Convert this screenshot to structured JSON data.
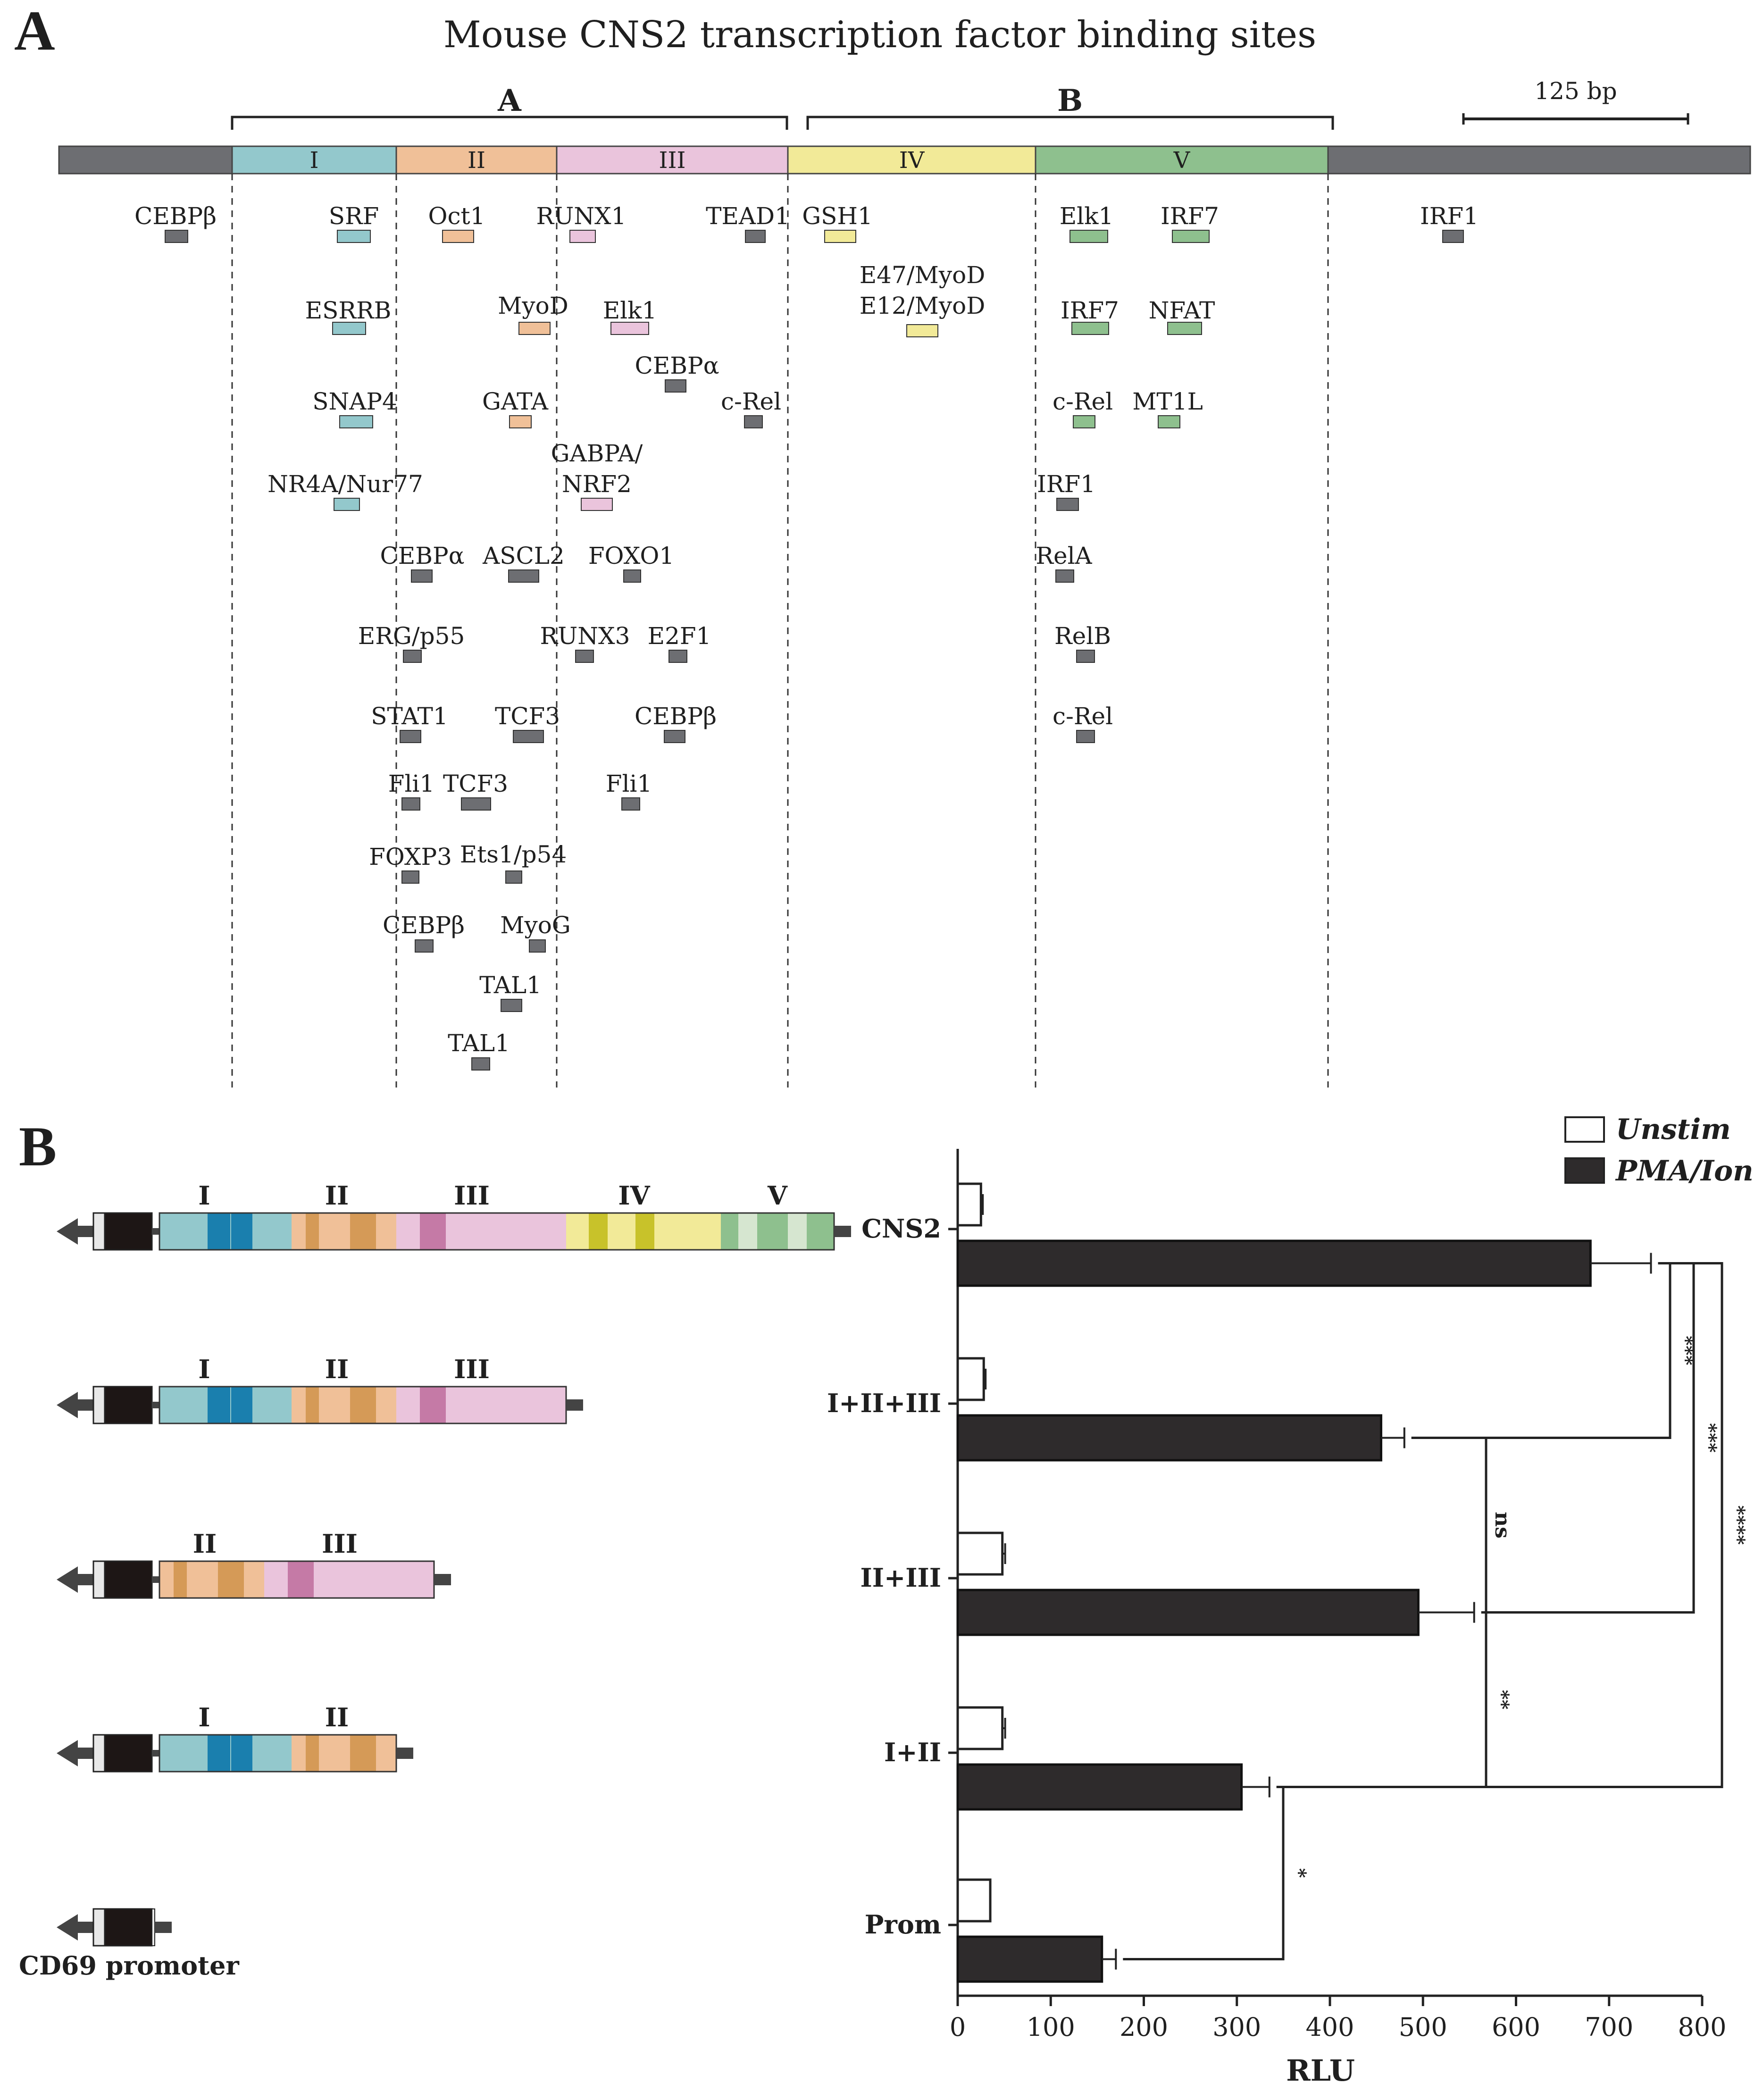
{
  "panelA": {
    "letter": "A",
    "title": "Mouse CNS2 transcription factor binding sites",
    "groupA": "A",
    "groupB": "B",
    "scaleLabel": "125 bp",
    "segments": [
      {
        "label": "I",
        "color": "#93c8cc"
      },
      {
        "label": "II",
        "color": "#f0c098"
      },
      {
        "label": "III",
        "color": "#eac4dc"
      },
      {
        "label": "IV",
        "color": "#f2ea98"
      },
      {
        "label": "V",
        "color": "#8ec08e"
      }
    ],
    "flankColor": "#6d6e72",
    "sites": [
      {
        "label": "CEBPβ",
        "color": "gray"
      },
      {
        "label": "SRF",
        "color": "teal"
      },
      {
        "label": "Oct1",
        "color": "peach"
      },
      {
        "label": "RUNX1",
        "color": "pink"
      },
      {
        "label": "TEAD1",
        "color": "gray"
      },
      {
        "label": "GSH1",
        "color": "yellow"
      },
      {
        "label": "Elk1",
        "color": "green"
      },
      {
        "label": "IRF7",
        "color": "green"
      },
      {
        "label": "IRF1",
        "color": "gray"
      },
      {
        "label": "E47/MyoD",
        "color": "none"
      },
      {
        "label": "E12/MyoD",
        "color": "yellow"
      },
      {
        "label": "ESRRB",
        "color": "teal"
      },
      {
        "label": "MyoD",
        "color": "peach"
      },
      {
        "label": "Elk1",
        "color": "pink"
      },
      {
        "label": "IRF7",
        "color": "green"
      },
      {
        "label": "NFAT",
        "color": "green"
      },
      {
        "label": "CEBPα",
        "color": "gray"
      },
      {
        "label": "SNAP4",
        "color": "teal"
      },
      {
        "label": "GATA",
        "color": "peach"
      },
      {
        "label": "c-Rel",
        "color": "gray"
      },
      {
        "label": "c-Rel",
        "color": "green"
      },
      {
        "label": "MT1L",
        "color": "green"
      },
      {
        "label": "GABPA/",
        "color": "none"
      },
      {
        "label": "NRF2",
        "color": "pink"
      },
      {
        "label": "NR4A/Nur77",
        "color": "teal"
      },
      {
        "label": "IRF1",
        "color": "gray"
      },
      {
        "label": "CEBPα",
        "color": "gray"
      },
      {
        "label": "ASCL2",
        "color": "gray"
      },
      {
        "label": "FOXO1",
        "color": "gray"
      },
      {
        "label": "RelA",
        "color": "gray"
      },
      {
        "label": "ERG/p55",
        "color": "gray"
      },
      {
        "label": "RUNX3",
        "color": "gray"
      },
      {
        "label": "E2F1",
        "color": "gray"
      },
      {
        "label": "RelB",
        "color": "gray"
      },
      {
        "label": "STAT1",
        "color": "gray"
      },
      {
        "label": "TCF3",
        "color": "gray"
      },
      {
        "label": "CEBPβ",
        "color": "gray"
      },
      {
        "label": "c-Rel",
        "color": "gray"
      },
      {
        "label": "Fli1",
        "color": "gray"
      },
      {
        "label": "TCF3",
        "color": "gray"
      },
      {
        "label": "Fli1",
        "color": "gray"
      },
      {
        "label": "FOXP3",
        "color": "gray"
      },
      {
        "label": "Ets1/p54",
        "color": "gray"
      },
      {
        "label": "CEBPβ",
        "color": "gray"
      },
      {
        "label": "MyoG",
        "color": "gray"
      },
      {
        "label": "TAL1",
        "color": "gray"
      },
      {
        "label": "TAL1",
        "color": "gray"
      }
    ]
  },
  "panelB": {
    "letter": "B",
    "promoterLabel": "CD69 promoter",
    "constructSegments": [
      "I",
      "II",
      "III",
      "IV",
      "V"
    ],
    "constructs": [
      {
        "name": "CNS2",
        "segments": [
          "I",
          "II",
          "III",
          "IV",
          "V"
        ]
      },
      {
        "name": "I+II+III",
        "segments": [
          "I",
          "II",
          "III"
        ]
      },
      {
        "name": "II+III",
        "segments": [
          "II",
          "III"
        ]
      },
      {
        "name": "I+II",
        "segments": [
          "I",
          "II"
        ]
      },
      {
        "name": "Prom",
        "segments": []
      }
    ]
  },
  "chart_data": {
    "type": "bar",
    "orientation": "horizontal",
    "categories": [
      "CNS2",
      "I+II+III",
      "II+III",
      "I+II",
      "Prom"
    ],
    "series": [
      {
        "name": "Unstim",
        "color": "#ffffff",
        "values": [
          25,
          28,
          48,
          48,
          35
        ],
        "errors": [
          2,
          2,
          3,
          3,
          0
        ]
      },
      {
        "name": "PMA/Ion",
        "color": "#2e2b2c",
        "values": [
          680,
          455,
          495,
          305,
          155
        ],
        "errors": [
          65,
          25,
          60,
          30,
          15
        ]
      }
    ],
    "xlabel": "RLU",
    "xlim": [
      0,
      800
    ],
    "xticks": [
      "0",
      "100",
      "200",
      "300",
      "400",
      "500",
      "600",
      "700",
      "800"
    ],
    "legend": "top-right",
    "significance": [
      {
        "pair": [
          "CNS2",
          "I+II+III"
        ],
        "label": "***"
      },
      {
        "pair": [
          "CNS2",
          "II+III"
        ],
        "label": "***"
      },
      {
        "pair": [
          "CNS2",
          "I+II"
        ],
        "label": "****"
      },
      {
        "pair": [
          "I+II+III",
          "II+III"
        ],
        "label": "ns"
      },
      {
        "pair": [
          "II+III",
          "I+II"
        ],
        "label": "**"
      },
      {
        "pair": [
          "I+II",
          "Prom"
        ],
        "label": "*"
      }
    ]
  }
}
